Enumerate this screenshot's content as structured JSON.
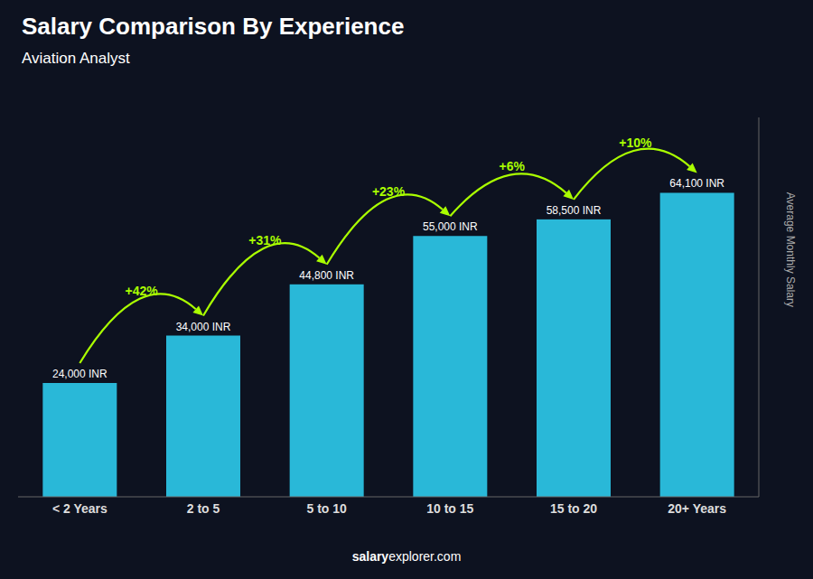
{
  "chart_data": {
    "type": "bar",
    "title": "Salary Comparison By Experience",
    "subtitle": "Aviation Analyst",
    "categories": [
      "< 2 Years",
      "2 to 5",
      "5 to 10",
      "10 to 15",
      "15 to 20",
      "20+ Years"
    ],
    "values": [
      24000,
      34000,
      44800,
      55000,
      58500,
      64100
    ],
    "value_labels": [
      "24,000 INR",
      "34,000 INR",
      "44,800 INR",
      "55,000 INR",
      "58,500 INR",
      "64,100 INR"
    ],
    "data_labels": true,
    "color": "#29b8d8",
    "y_label": "Average Monthly Salary",
    "ylim": [
      0,
      80000
    ],
    "tick_labels": "x",
    "grid": false,
    "annotations": [
      {
        "text": "+42%",
        "color": "#aaff00"
      },
      {
        "text": "+31%",
        "color": "#aaff00"
      },
      {
        "text": "+23%",
        "color": "#aaff00"
      },
      {
        "text": "+6%",
        "color": "#aaff00"
      },
      {
        "text": "+10%",
        "color": "#aaff00"
      }
    ],
    "footer": [
      "salary",
      "explorer.com"
    ]
  }
}
